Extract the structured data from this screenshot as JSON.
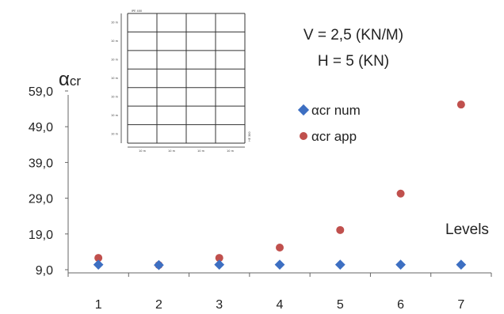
{
  "chart_data": {
    "type": "scatter",
    "ylabel": {
      "main": "α",
      "sub": "cr"
    },
    "xlabel": "Levels",
    "categories": [
      "1",
      "2",
      "3",
      "4",
      "5",
      "6",
      "7"
    ],
    "y_ticks": [
      "9,0",
      "19,0",
      "29,0",
      "39,0",
      "49,0",
      "59,0"
    ],
    "y_tick_values": [
      9,
      19,
      29,
      39,
      49,
      59
    ],
    "ylim": [
      9,
      59
    ],
    "grid": false,
    "legend_position": "right",
    "series": [
      {
        "name": "αcr num",
        "marker": "diamond",
        "color": "#3d6fc2",
        "values": [
          10.4,
          10.3,
          10.4,
          10.4,
          10.4,
          10.4,
          10.4
        ]
      },
      {
        "name": "αcr app",
        "marker": "circle",
        "color": "#c0504d",
        "values": [
          12.3,
          10.3,
          12.3,
          15.2,
          20.1,
          30.3,
          55.2
        ]
      }
    ],
    "annotations": {
      "line1": "V = 2,5 (KN/M)",
      "line2": "H = 5 (KN)"
    },
    "inset": {
      "beam_label": "IPE 400",
      "column_label": "HE 300",
      "story_height_label": "10 m",
      "bay_width_label": "10 m"
    }
  }
}
